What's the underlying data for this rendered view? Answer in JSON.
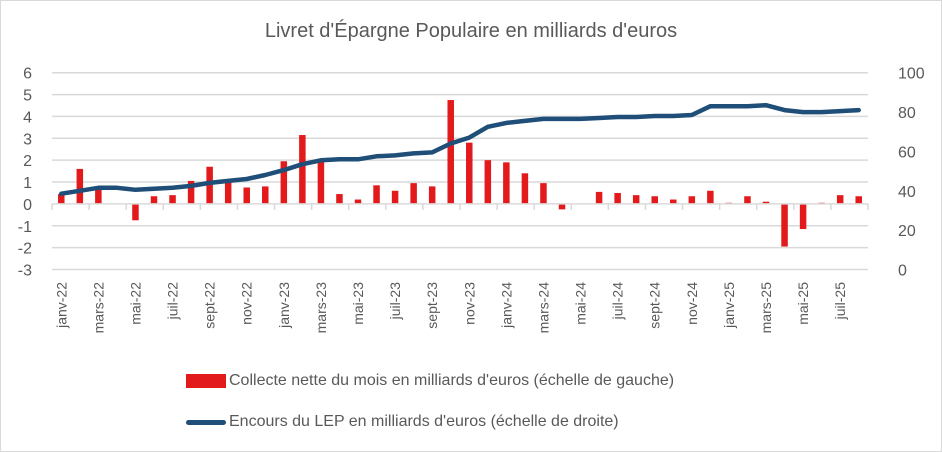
{
  "chart_data": {
    "type": "bar+line",
    "title": "Livret d'Épargne Populaire en milliards d'euros",
    "categories": [
      "janv-22",
      "févr-22",
      "mars-22",
      "avr-22",
      "mai-22",
      "juin-22",
      "juil-22",
      "août-22",
      "sept-22",
      "oct-22",
      "nov-22",
      "déc-22",
      "janv-23",
      "févr-23",
      "mars-23",
      "avr-23",
      "mai-23",
      "juin-23",
      "juil-23",
      "août-23",
      "sept-23",
      "oct-23",
      "nov-23",
      "déc-23",
      "janv-24",
      "févr-24",
      "mars-24",
      "avr-24",
      "mai-24",
      "juin-24",
      "juil-24",
      "août-24",
      "sept-24",
      "oct-24",
      "nov-24",
      "déc-24",
      "janv-25",
      "févr-25",
      "mars-25",
      "avr-25",
      "mai-25",
      "juin-25",
      "juil-25",
      "août-25"
    ],
    "tick_labels": [
      "janv-22",
      "mars-22",
      "mai-22",
      "juil-22",
      "sept-22",
      "nov-22",
      "janv-23",
      "mars-23",
      "mai-23",
      "juil-23",
      "sept-23",
      "nov-23",
      "janv-24",
      "mars-24",
      "mai-24",
      "juil-24",
      "sept-24",
      "nov-24",
      "janv-25",
      "mars-25",
      "mai-25",
      "juil-25"
    ],
    "series": [
      {
        "name": "Collecte nette du mois en milliards d'euros (échelle de gauche)",
        "type": "bar",
        "axis": "left",
        "color": "#e31a1c",
        "values": [
          0.45,
          1.6,
          0.7,
          0,
          -0.75,
          0.35,
          0.4,
          1.05,
          1.7,
          1.0,
          0.75,
          0.8,
          1.95,
          3.15,
          2.0,
          0.45,
          0.2,
          0.85,
          0.6,
          0.95,
          0.8,
          4.75,
          2.8,
          2.0,
          1.9,
          1.4,
          0.95,
          -0.25,
          0,
          0.55,
          0.5,
          0.4,
          0.35,
          0.2,
          0.35,
          0.6,
          0.05,
          0.35,
          0.1,
          -1.95,
          -1.15,
          0.05,
          0.4,
          0.35
        ]
      },
      {
        "name": "Encours du LEP en milliards d'euros (échelle de droite)",
        "type": "line",
        "axis": "right",
        "color": "#1f4e79",
        "values": [
          38.5,
          40,
          41.5,
          41.5,
          40.5,
          41,
          41.5,
          42.5,
          44,
          45,
          46,
          48,
          50.5,
          53.5,
          55.5,
          56,
          56,
          57.5,
          58,
          59,
          59.5,
          64,
          67,
          72.5,
          74.5,
          75.5,
          76.5,
          76.5,
          76.5,
          77,
          77.5,
          77.5,
          78,
          78,
          78.5,
          83,
          83,
          83,
          83.5,
          81,
          80,
          80,
          80.5,
          81
        ]
      }
    ],
    "y_left": {
      "min": -3,
      "max": 6,
      "ticks": [
        6,
        5,
        4,
        3,
        2,
        1,
        0,
        -1,
        -2,
        -3
      ]
    },
    "y_right": {
      "min": 0,
      "max": 100,
      "ticks": [
        100,
        80,
        60,
        40,
        20,
        0
      ]
    },
    "grid": true,
    "legend_position": "bottom"
  },
  "legend": {
    "bar_label": "Collecte nette du mois en milliards d'euros (échelle de gauche)",
    "line_label": "Encours du LEP en milliards d'euros (échelle de droite)"
  }
}
